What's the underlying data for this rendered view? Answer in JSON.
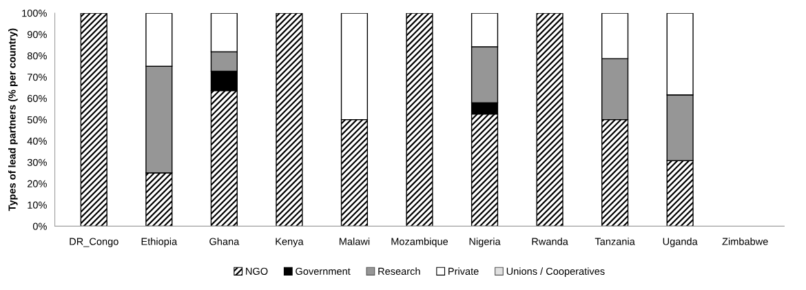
{
  "chart_data": {
    "type": "bar",
    "stacked": true,
    "ylabel": "Types of lead partners (% per country)",
    "categories": [
      "DR_Congo",
      "Ethiopia",
      "Ghana",
      "Kenya",
      "Malawi",
      "Mozambique",
      "Nigeria",
      "Rwanda",
      "Tanzania",
      "Uganda",
      "Zimbabwe"
    ],
    "series": [
      {
        "name": "NGO",
        "color": "#000000",
        "values": [
          100,
          25,
          63.6,
          100,
          50,
          100,
          52.6,
          100,
          50,
          30.8,
          null
        ]
      },
      {
        "name": "Government",
        "color": "#000000",
        "values": [
          0,
          0,
          9.1,
          0,
          0,
          0,
          5.3,
          0,
          0,
          0,
          null
        ]
      },
      {
        "name": "Research",
        "color": "#969696",
        "values": [
          0,
          50,
          9.1,
          0,
          0,
          0,
          26.3,
          0,
          28.6,
          30.8,
          null
        ]
      },
      {
        "name": "Private",
        "color": "#ffffff",
        "values": [
          0,
          25,
          18.2,
          0,
          50,
          0,
          15.8,
          0,
          21.4,
          38.4,
          null
        ]
      },
      {
        "name": "Unions / Cooperatives",
        "color": "#e0e0e0",
        "values": [
          0,
          0,
          0,
          0,
          0,
          0,
          0,
          0,
          0,
          0,
          null
        ]
      }
    ],
    "ylim": [
      0,
      100
    ],
    "yticks": [
      {
        "value": 0,
        "label": "0%"
      },
      {
        "value": 10,
        "label": "10%"
      },
      {
        "value": 20,
        "label": "20%"
      },
      {
        "value": 30,
        "label": "30%"
      },
      {
        "value": 40,
        "label": "40%"
      },
      {
        "value": 50,
        "label": "50%"
      },
      {
        "value": 60,
        "label": "60%"
      },
      {
        "value": 70,
        "label": "70%"
      },
      {
        "value": 80,
        "label": "80%"
      },
      {
        "value": 90,
        "label": "90%"
      },
      {
        "value": 100,
        "label": "100%"
      }
    ],
    "grid": false,
    "legend": "bottom"
  }
}
